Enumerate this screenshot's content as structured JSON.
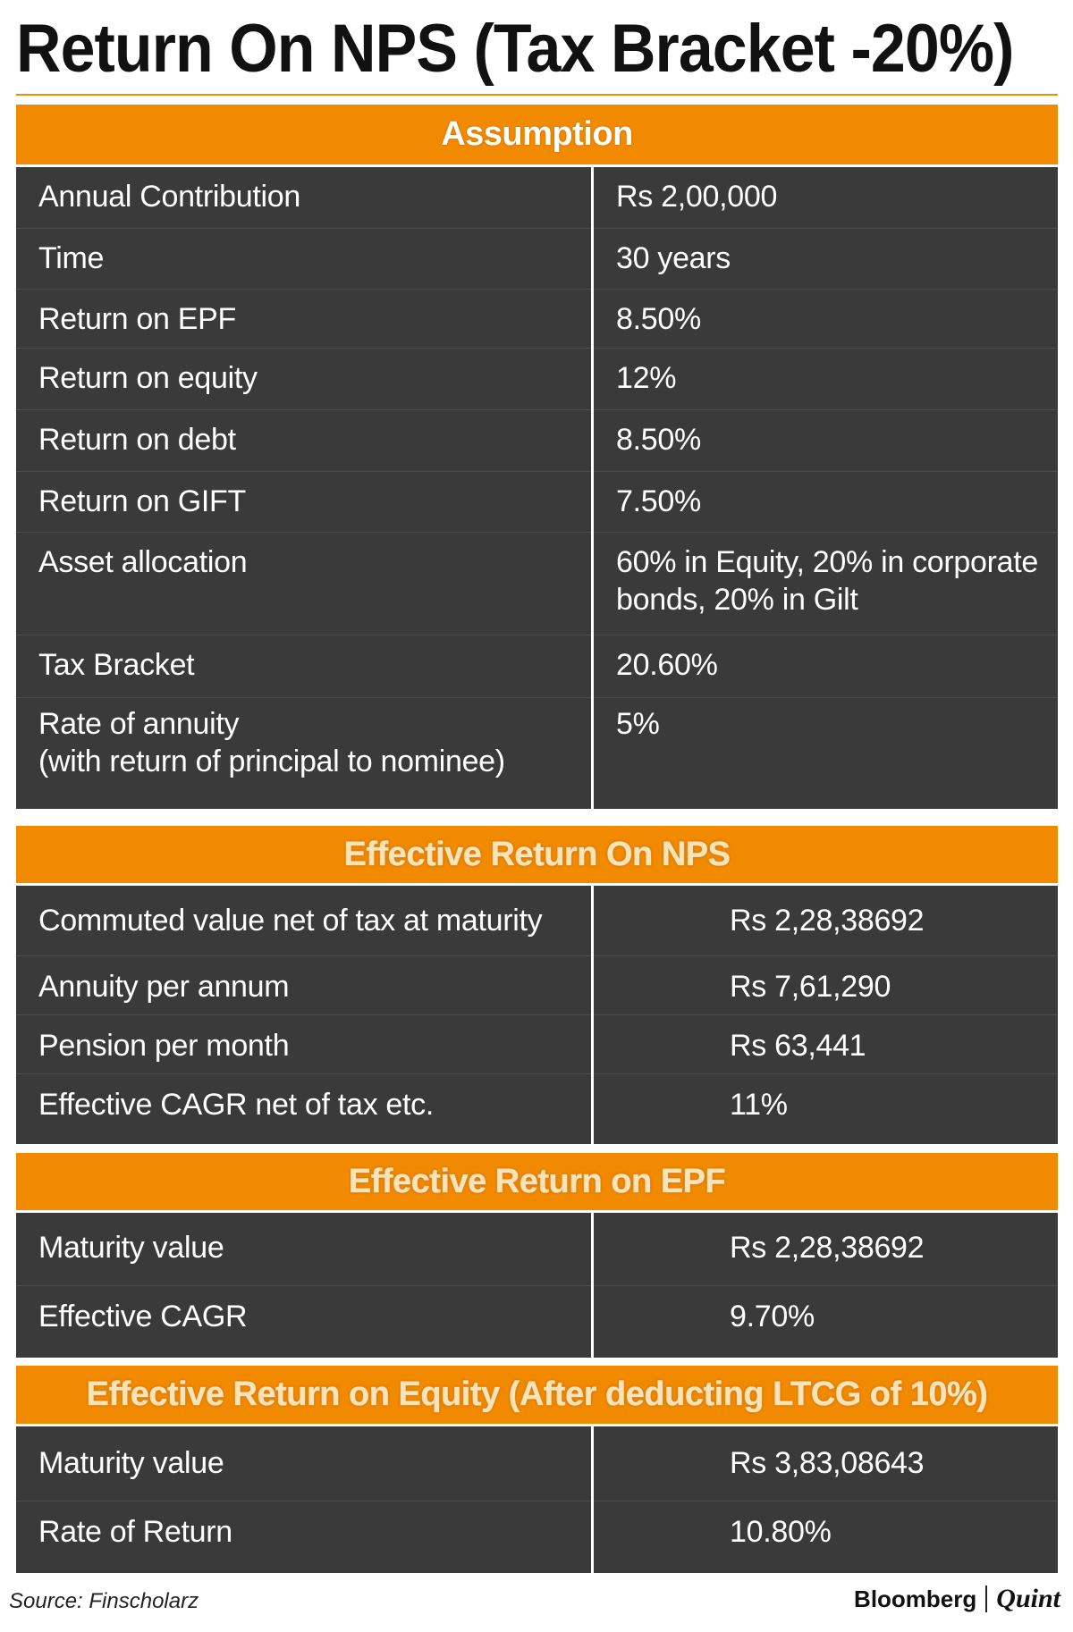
{
  "title": "Return On NPS (Tax Bracket -20%)",
  "colors": {
    "accent": "#f28a00",
    "table_bg": "#3a3a3a",
    "text_light": "#ffffff"
  },
  "assumption": {
    "heading": "Assumption",
    "rows": [
      {
        "label": "Annual Contribution",
        "value": "Rs 2,00,000"
      },
      {
        "label": "Time",
        "value": "30 years"
      },
      {
        "label": "Return on EPF",
        "value": "8.50%"
      },
      {
        "label": "Return on equity",
        "value": "12%"
      },
      {
        "label": "Return on debt",
        "value": "8.50%"
      },
      {
        "label": "Return on GIFT",
        "value": "7.50%"
      },
      {
        "label": "Asset allocation",
        "value": "60% in Equity, 20% in corporate bonds, 20% in Gilt"
      },
      {
        "label": "Tax Bracket",
        "value": "20.60%"
      },
      {
        "label": "Rate of annuity\n(with return of principal to nominee)",
        "value": "5%"
      }
    ]
  },
  "nps": {
    "heading": "Effective Return On NPS",
    "rows": [
      {
        "label": "Commuted value net of tax at maturity",
        "value": "Rs 2,28,38692"
      },
      {
        "label": "Annuity per annum",
        "value": "Rs 7,61,290"
      },
      {
        "label": "Pension per month",
        "value": "Rs 63,441"
      },
      {
        "label": "Effective CAGR net of tax etc.",
        "value": "11%"
      }
    ]
  },
  "epf": {
    "heading": "Effective Return on EPF",
    "rows": [
      {
        "label": "Maturity value",
        "value": "Rs 2,28,38692"
      },
      {
        "label": "Effective CAGR",
        "value": "9.70%"
      }
    ]
  },
  "equity": {
    "heading": "Effective Return on Equity (After deducting LTCG of 10%)",
    "rows": [
      {
        "label": "Maturity value",
        "value": "Rs 3,83,08643"
      },
      {
        "label": "Rate of Return",
        "value": "10.80%"
      }
    ]
  },
  "footer": {
    "source": "Source: Finscholarz",
    "brand_left": "Bloomberg",
    "brand_right": "Quint"
  }
}
